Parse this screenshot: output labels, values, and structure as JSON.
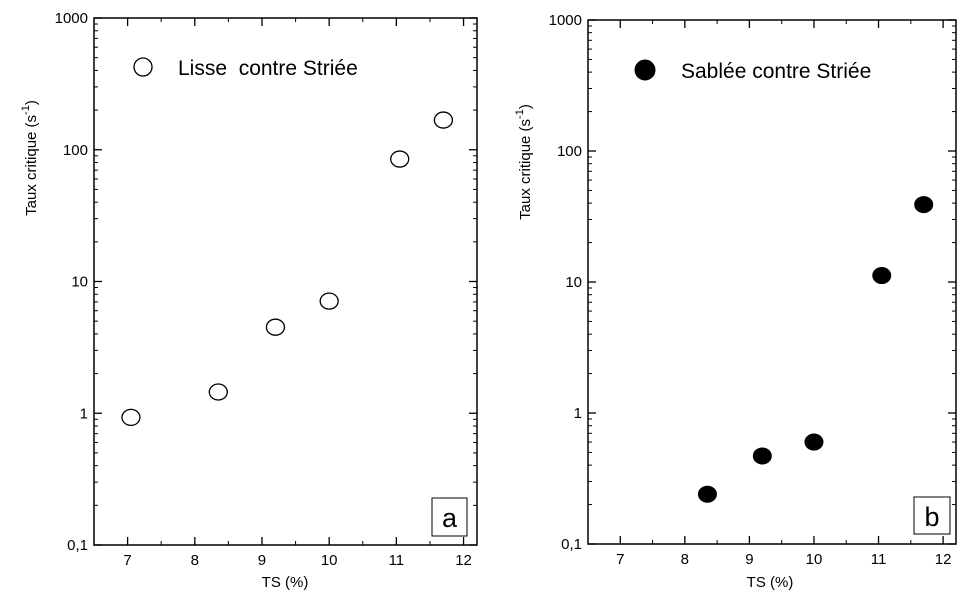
{
  "chart_data": [
    {
      "type": "scatter",
      "panel_label": "a",
      "xlabel": "TS (%)",
      "ylabel": "Taux critique (s",
      "ylabel_sup": "-1",
      "ylabel_close": ")",
      "xlim": [
        6.5,
        12.2
      ],
      "ylim": [
        0.1,
        1000
      ],
      "yscale": "log",
      "x_ticks": [
        7,
        8,
        9,
        10,
        11,
        12
      ],
      "x_tick_labels": [
        "7",
        "8",
        "9",
        "10",
        "11",
        "12"
      ],
      "y_ticks": [
        0.1,
        1,
        10,
        100,
        1000
      ],
      "y_tick_labels": [
        "0,1",
        "1",
        "10",
        "100",
        "1000"
      ],
      "legend_position": "top-left",
      "marker": "open-circle",
      "series": [
        {
          "name": "Lisse  contre Striée",
          "x": [
            7.05,
            8.35,
            9.2,
            10.0,
            11.05,
            11.7
          ],
          "y": [
            0.93,
            1.45,
            4.5,
            7.1,
            85,
            168
          ]
        }
      ]
    },
    {
      "type": "scatter",
      "panel_label": "b",
      "xlabel": "TS (%)",
      "ylabel": "Taux critique (s",
      "ylabel_sup": "-1",
      "ylabel_close": ")",
      "xlim": [
        6.5,
        12.2
      ],
      "ylim": [
        0.1,
        1000
      ],
      "yscale": "log",
      "x_ticks": [
        7,
        8,
        9,
        10,
        11,
        12
      ],
      "x_tick_labels": [
        "7",
        "8",
        "9",
        "10",
        "11",
        "12"
      ],
      "y_ticks": [
        0.1,
        1,
        10,
        100,
        1000
      ],
      "y_tick_labels": [
        "0,1",
        "1",
        "10",
        "100",
        "1000"
      ],
      "legend_position": "top-left",
      "marker": "filled-circle",
      "series": [
        {
          "name": "Sablée contre Striée",
          "x": [
            8.35,
            9.2,
            10.0,
            11.05,
            11.7
          ],
          "y": [
            0.24,
            0.47,
            0.6,
            11.2,
            39
          ]
        }
      ]
    }
  ]
}
